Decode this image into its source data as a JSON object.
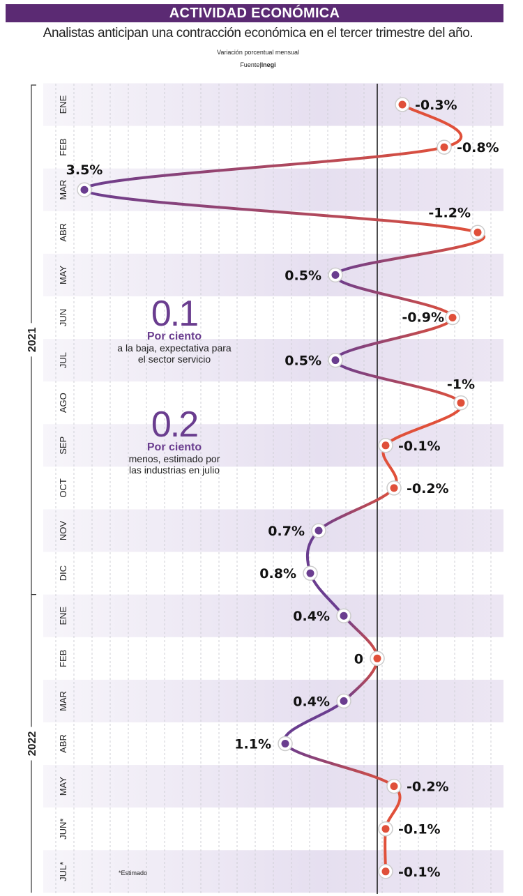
{
  "header": {
    "title": "ACTIVIDAD ECONÓMICA",
    "subtitle": "Analistas anticipan una contracción económica en el tercer trimestre del año.",
    "unit": "Variación porcentual mensual",
    "source_label": "Fuente|",
    "source_name": "Inegi"
  },
  "notes": [
    {
      "value": "0.1",
      "label": "Por ciento",
      "text": "a la baja, expectativa para el sector servicio"
    },
    {
      "value": "0.2",
      "label": "Por ciento",
      "text": "menos, estimado por las industrias en julio"
    }
  ],
  "footnote": "*Estimado",
  "colors": {
    "positive": "#6a3d8f",
    "negative": "#e0503a",
    "banner": "#5b2a73"
  },
  "chart_data": {
    "type": "line",
    "orientation": "vertical (months top to bottom; positive values to the left, negative to the right of zero line)",
    "title": "ACTIVIDAD ECONÓMICA",
    "ylabel": "Variación porcentual mensual",
    "grid": true,
    "years": [
      {
        "label": "2021",
        "months": 12
      },
      {
        "label": "2022",
        "months": 7
      }
    ],
    "categories": [
      "ENE",
      "FEB",
      "MAR",
      "ABR",
      "MAY",
      "JUN",
      "JUL",
      "AGO",
      "SEP",
      "OCT",
      "NOV",
      "DIC",
      "ENE",
      "FEB",
      "MAR",
      "ABR",
      "MAY",
      "JUN*",
      "JUL*"
    ],
    "values": [
      -0.3,
      -0.8,
      3.5,
      -1.2,
      0.5,
      -0.9,
      0.5,
      -1,
      -0.1,
      -0.2,
      0.7,
      0.8,
      0.4,
      0,
      0.4,
      1.1,
      -0.2,
      -0.1,
      -0.1
    ],
    "labels": [
      "-0.3%",
      "-0.8%",
      "3.5%",
      "-1.2%",
      "0.5%",
      "-0.9%",
      "0.5%",
      "-1%",
      "-0.1%",
      "-0.2%",
      "0.7%",
      "0.8%",
      "0.4%",
      "0",
      "0.4%",
      "1.1%",
      "-0.2%",
      "-0.1%",
      "-0.1%"
    ]
  }
}
